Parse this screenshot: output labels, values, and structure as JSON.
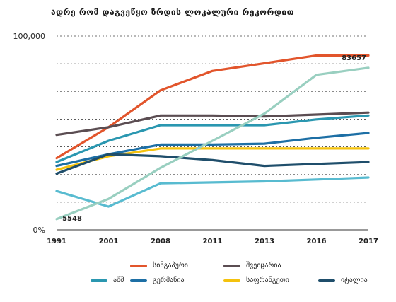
{
  "chart_data": {
    "type": "line",
    "title": "ადრე რომ დაგვეწყო ზრდის ლოკალური რეკორდით",
    "xlabel": "",
    "ylabel": "",
    "categories": [
      "1991",
      "2001",
      "2008",
      "2011",
      "2013",
      "2016",
      "2017"
    ],
    "ylim": [
      0,
      100000
    ],
    "y_tick_labels": [
      "0%",
      "100,000"
    ],
    "grid": "horizontal dashed",
    "legend_position": "bottom",
    "series": [
      {
        "name": "სინგაპური",
        "color": "#e2552c",
        "values": [
          37000,
          53000,
          72000,
          82000,
          86000,
          90000,
          90000
        ]
      },
      {
        "name": "შვეიცარია",
        "color": "#5b4d52",
        "values": [
          49000,
          53000,
          59000,
          59000,
          58500,
          59500,
          60500
        ]
      },
      {
        "name": "აშშ",
        "color": "#2a97b0",
        "values": [
          35000,
          46000,
          54000,
          54000,
          54000,
          57000,
          59000
        ]
      },
      {
        "name": "გერმანია",
        "color": "#1d6fa5",
        "values": [
          33000,
          39000,
          44000,
          44000,
          44500,
          47500,
          50000
        ]
      },
      {
        "name": "საფრანგეთი",
        "color": "#f4c20d",
        "values": [
          31000,
          38000,
          42000,
          42000,
          42000,
          42000,
          42000
        ]
      },
      {
        "name": "იტალია",
        "color": "#1f4e6b",
        "values": [
          29000,
          39000,
          38000,
          36000,
          33000,
          34000,
          35000
        ]
      },
      {
        "name": "",
        "color": "#58bbd0",
        "values": [
          20000,
          12000,
          24000,
          24500,
          25000,
          26000,
          27000
        ]
      },
      {
        "name": "",
        "color": "#99cfc0",
        "values": [
          5548,
          16000,
          32000,
          46000,
          60000,
          80000,
          83657
        ]
      }
    ],
    "annotations": [
      {
        "text": "5548",
        "series_index": 7,
        "point_index": 0
      },
      {
        "text": "83657",
        "series_index": 7,
        "point_index": 6
      }
    ]
  }
}
